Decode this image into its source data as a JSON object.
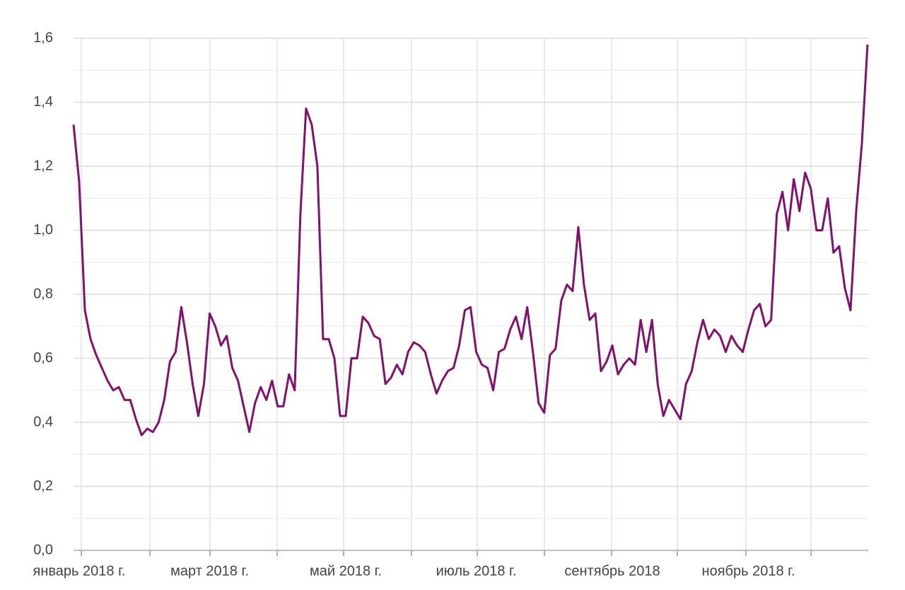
{
  "chart_data": {
    "type": "line",
    "categories": [
      null,
      "январь 2018 г.",
      null,
      null,
      null,
      null,
      null,
      null,
      null,
      null,
      null,
      null,
      null,
      null,
      null,
      null,
      null,
      null,
      null,
      null,
      null,
      null,
      null,
      null,
      "март 2018 г.",
      null,
      null,
      null,
      null,
      null,
      null,
      null,
      null,
      null,
      null,
      null,
      null,
      null,
      null,
      null,
      null,
      null,
      null,
      null,
      null,
      null,
      null,
      null,
      "май 2018 г.",
      null,
      null,
      null,
      null,
      null,
      null,
      null,
      null,
      null,
      null,
      null,
      null,
      null,
      null,
      null,
      null,
      null,
      null,
      null,
      null,
      null,
      null,
      "июль 2018 г.",
      null,
      null,
      null,
      null,
      null,
      null,
      null,
      null,
      null,
      null,
      null,
      null,
      null,
      null,
      null,
      null,
      null,
      null,
      null,
      null,
      null,
      null,
      null,
      "сентябрь 2018",
      null,
      null,
      null,
      null,
      null,
      null,
      null,
      null,
      null,
      null,
      null,
      null,
      null,
      null,
      null,
      null,
      null,
      null,
      null,
      null,
      null,
      null,
      null,
      "ноябрь 2018 г.",
      null,
      null,
      null,
      null,
      null,
      null,
      null,
      null,
      null,
      null,
      null,
      null,
      null,
      null,
      null,
      null,
      null,
      null,
      null,
      null,
      null
    ],
    "values": [
      1.33,
      1.15,
      0.75,
      0.66,
      0.61,
      0.57,
      0.53,
      0.5,
      0.51,
      0.47,
      0.47,
      0.41,
      0.36,
      0.38,
      0.37,
      0.4,
      0.47,
      0.59,
      0.62,
      0.76,
      0.65,
      0.52,
      0.42,
      0.52,
      0.74,
      0.7,
      0.64,
      0.67,
      0.57,
      0.53,
      0.45,
      0.37,
      0.46,
      0.51,
      0.47,
      0.53,
      0.45,
      0.45,
      0.55,
      0.5,
      1.05,
      1.38,
      1.33,
      1.2,
      0.66,
      0.66,
      0.6,
      0.42,
      0.42,
      0.6,
      0.6,
      0.73,
      0.71,
      0.67,
      0.66,
      0.52,
      0.54,
      0.58,
      0.55,
      0.62,
      0.65,
      0.64,
      0.62,
      0.55,
      0.49,
      0.53,
      0.56,
      0.57,
      0.64,
      0.75,
      0.76,
      0.62,
      0.58,
      0.57,
      0.5,
      0.62,
      0.63,
      0.69,
      0.73,
      0.66,
      0.76,
      0.62,
      0.46,
      0.43,
      0.61,
      0.63,
      0.78,
      0.83,
      0.81,
      1.01,
      0.83,
      0.72,
      0.74,
      0.56,
      0.59,
      0.64,
      0.55,
      0.58,
      0.6,
      0.58,
      0.72,
      0.62,
      0.72,
      0.52,
      0.42,
      0.47,
      0.44,
      0.41,
      0.52,
      0.56,
      0.65,
      0.72,
      0.66,
      0.69,
      0.67,
      0.62,
      0.67,
      0.64,
      0.62,
      0.69,
      0.75,
      0.77,
      0.7,
      0.72,
      1.05,
      1.12,
      1.0,
      1.16,
      1.06,
      1.18,
      1.13,
      1.0,
      1.0,
      1.1,
      0.93,
      0.95,
      0.82,
      0.75,
      1.06,
      1.27,
      1.58
    ],
    "color": "#850f6e",
    "ylim": [
      0,
      1.6
    ],
    "yticks": [
      {
        "value": 0,
        "label": "0,0"
      },
      {
        "value": 0.2,
        "label": "0,2"
      },
      {
        "value": 0.4,
        "label": "0,4"
      },
      {
        "value": 0.6,
        "label": "0,6"
      },
      {
        "value": 0.8,
        "label": "0,8"
      },
      {
        "value": 1.0,
        "label": "1,0"
      },
      {
        "value": 1.2,
        "label": "1,2"
      },
      {
        "value": 1.4,
        "label": "1,4"
      },
      {
        "value": 1.6,
        "label": "1,6"
      }
    ],
    "grid": true
  }
}
